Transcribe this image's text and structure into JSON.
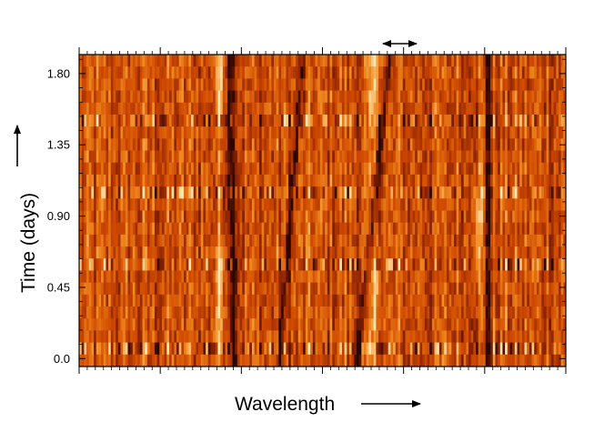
{
  "chart_data": {
    "type": "heatmap",
    "title": "",
    "xlabel": "Wavelength",
    "ylabel": "Time (days)",
    "x_ticks_labeled": false,
    "y_ticks": [
      0.0,
      0.45,
      0.9,
      1.35,
      1.8
    ],
    "y_tick_labels": [
      "0.0",
      "0.45",
      "0.90",
      "1.35",
      "1.80"
    ],
    "ylim": [
      -0.05,
      1.92
    ],
    "colormap": [
      "#2a0600",
      "#8a2200",
      "#d04a00",
      "#f08a20",
      "#ffe6b0"
    ],
    "n_wavelength_bins": 200,
    "n_time_rows": 26,
    "notable_time_rows": [
      0.05,
      0.58,
      1.03,
      1.5
    ],
    "absorption_features": [
      {
        "name": "feature-a",
        "wavelength_frac": 0.31,
        "drift_frac": 0.008
      },
      {
        "name": "feature-b",
        "wavelength_frac": 0.46,
        "drift_frac": -0.05
      },
      {
        "name": "feature-c",
        "wavelength_frac": 0.64,
        "drift_frac": -0.07
      },
      {
        "name": "feature-d",
        "wavelength_frac": 0.84,
        "drift_frac": 0.0
      }
    ],
    "emission_features": [
      {
        "name": "emission-a",
        "wavelength_frac": 0.29
      },
      {
        "name": "emission-b",
        "wavelength_frac": 0.61
      },
      {
        "name": "emission-c",
        "wavelength_frac": 0.82
      }
    ],
    "annotation": {
      "symbol": "↔",
      "wavelength_frac": 0.66
    }
  }
}
